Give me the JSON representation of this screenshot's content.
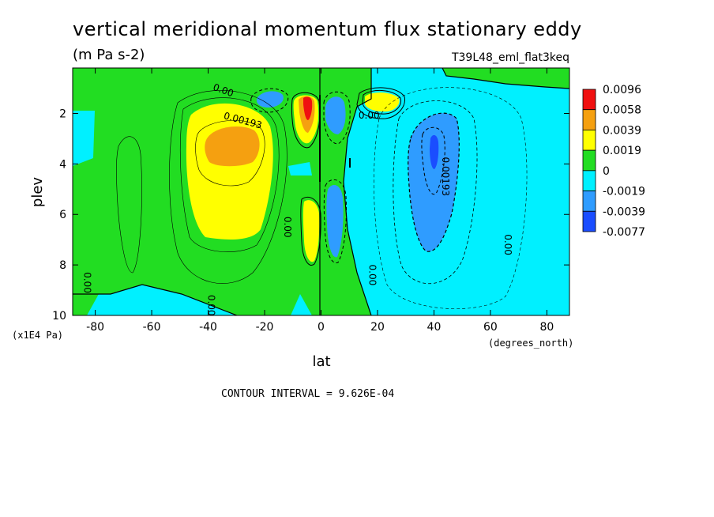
{
  "chart_data": {
    "type": "heatmap",
    "title": "vertical meridional momentum flux stationary eddy",
    "units": "(m Pa s-2)",
    "dataset": "T39L48_eml_flat3keq",
    "xlabel": "lat",
    "xunits": "(degrees_north)",
    "ylabel": "plev",
    "yunits": "(x1E4 Pa)",
    "xlim": [
      -88,
      88
    ],
    "ylim": [
      10,
      0.2
    ],
    "x_ticks": [
      -80,
      -60,
      -40,
      -20,
      0,
      20,
      40,
      60,
      80
    ],
    "y_ticks": [
      2,
      4,
      6,
      8,
      10
    ],
    "contour_interval": "CONTOUR INTERVAL = 9.626E-04",
    "legend": {
      "placement": "right",
      "levels": [
        "0.0096",
        "0.0058",
        "0.0039",
        "0.0019",
        "0",
        "-0.0019",
        "-0.0039",
        "-0.0077"
      ],
      "colors": [
        "#f01010",
        "#f5a010",
        "#ffff00",
        "#22dd22",
        "#00f0ff",
        "#2f9cff",
        "#1a4dff"
      ]
    },
    "contour_labels": [
      {
        "text": "0.00",
        "lat": -35,
        "plev": 1.2
      },
      {
        "text": "0.00193",
        "lat": -28,
        "plev": 2.4
      },
      {
        "text": "0.00",
        "lat": 17,
        "plev": 2.2
      },
      {
        "text": "0.00193",
        "lat": 43,
        "plev": 4.5
      },
      {
        "text": "0.00",
        "lat": -13,
        "plev": 6.5
      },
      {
        "text": "0.00",
        "lat": 65,
        "plev": 7.2
      },
      {
        "text": "0.00",
        "lat": 17,
        "plev": 8.4
      },
      {
        "text": "0.00",
        "lat": -84,
        "plev": 8.7
      },
      {
        "text": "0.00",
        "lat": -40,
        "plev": 9.6
      }
    ],
    "features": [
      {
        "sign": "positive",
        "lat": -33,
        "plev": 3.2,
        "peak": 0.0058,
        "band": "orange"
      },
      {
        "sign": "positive",
        "lat": -5,
        "plev": 1.9,
        "peak": 0.0096,
        "band": "red"
      },
      {
        "sign": "positive",
        "lat": -4,
        "plev": 6.6,
        "peak": 0.0039,
        "band": "yellow"
      },
      {
        "sign": "positive",
        "lat": 21,
        "plev": 1.6,
        "peak": 0.0039,
        "band": "yellow"
      },
      {
        "sign": "negative",
        "lat": -18,
        "plev": 1.5,
        "peak": -0.0039,
        "band": "blue"
      },
      {
        "sign": "negative",
        "lat": 6,
        "plev": 1.9,
        "peak": -0.0039,
        "band": "blue"
      },
      {
        "sign": "negative",
        "lat": 6,
        "plev": 6.6,
        "peak": -0.0039,
        "band": "blue"
      },
      {
        "sign": "negative",
        "lat": 40,
        "plev": 3.9,
        "peak": -0.0077,
        "band": "dark-blue"
      }
    ]
  }
}
